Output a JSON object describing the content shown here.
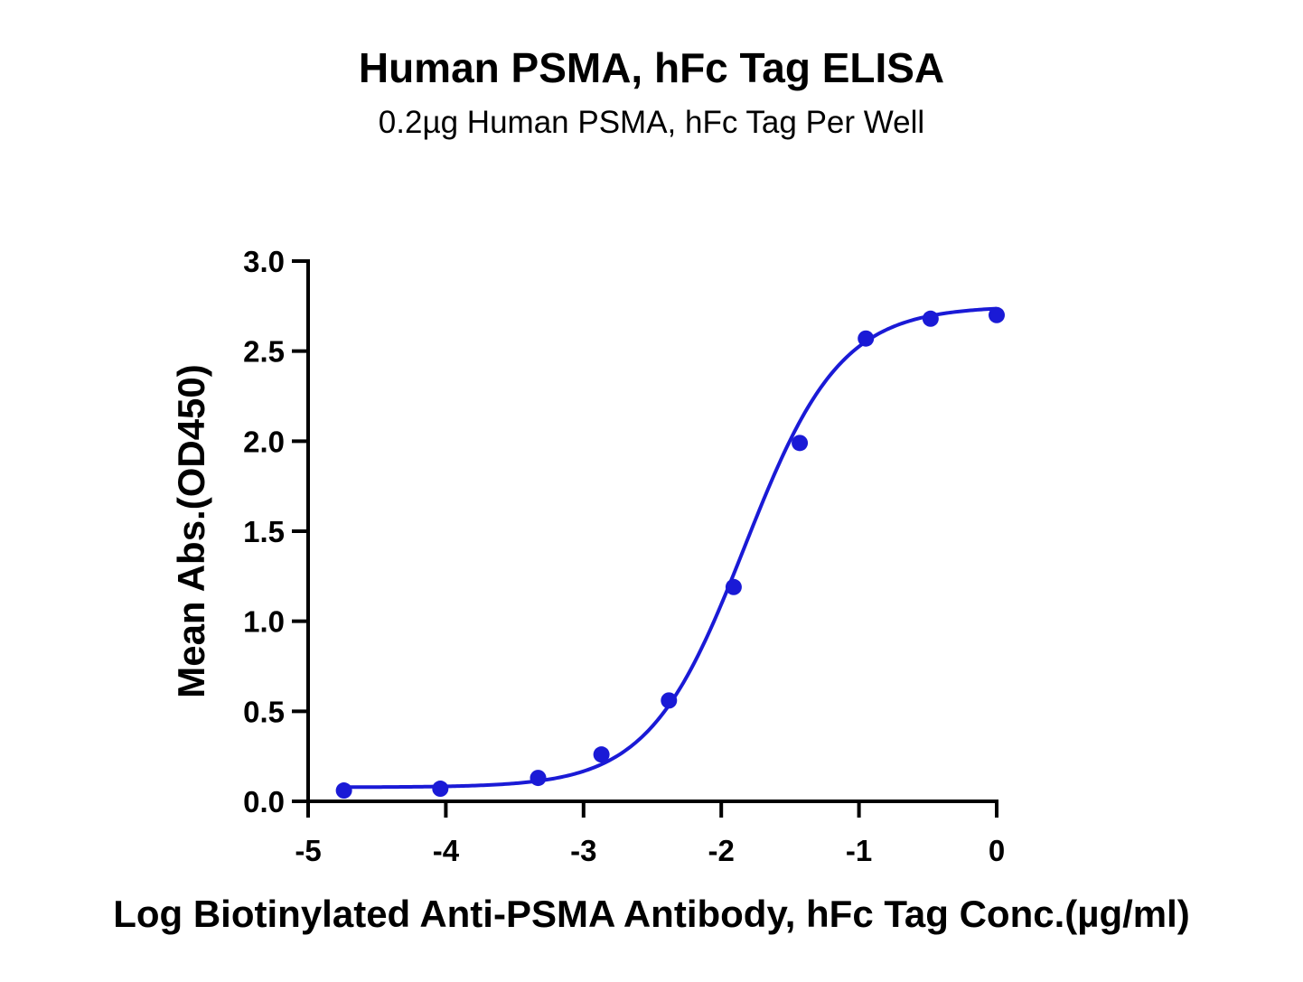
{
  "chart_data": {
    "type": "scatter",
    "title": "Human PSMA, hFc Tag ELISA",
    "subtitle": "0.2µg Human PSMA, hFc Tag Per Well",
    "xlabel": "Log Biotinylated Anti-PSMA Antibody, hFc Tag Conc.(µg/ml)",
    "ylabel": "Mean Abs.(OD450)",
    "xlim": [
      -5,
      0
    ],
    "ylim": [
      0,
      3.0
    ],
    "x_ticks": [
      "-5",
      "-4",
      "-3",
      "-2",
      "-1",
      "0"
    ],
    "y_ticks": [
      "0.0",
      "0.5",
      "1.0",
      "1.5",
      "2.0",
      "2.5",
      "3.0"
    ],
    "grid": false,
    "colors": {
      "series": "#1a1ad6",
      "axis": "#000000"
    },
    "series": [
      {
        "x": [
          -4.74,
          -4.04,
          -3.33,
          -2.87,
          -2.38,
          -1.91,
          -1.43,
          -0.95,
          -0.48,
          0.0
        ],
        "y": [
          0.06,
          0.07,
          0.13,
          0.26,
          0.56,
          1.19,
          1.99,
          2.57,
          2.68,
          2.7
        ],
        "fit": "four-parameter logistic",
        "fit_curve": {
          "bottom": 0.078,
          "top": 2.75,
          "log_ec50": -1.83,
          "hill_slope": 1.25
        }
      }
    ]
  }
}
